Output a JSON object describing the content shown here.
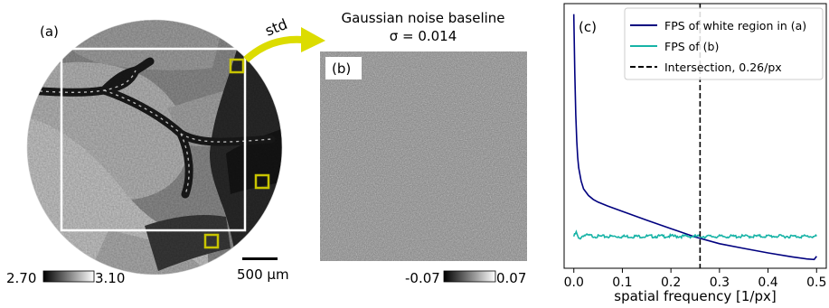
{
  "panel_a": {
    "label": "(a)",
    "arrow_label": "std",
    "colorbar_min": "2.70",
    "colorbar_max": "3.10",
    "scalebar_label": "500 µm",
    "box_color": "#c8c400",
    "roi_color": "#ffffff"
  },
  "panel_b": {
    "label": "(b)",
    "title_line1": "Gaussian noise baseline",
    "title_line2": "σ = 0.014",
    "colorbar_min": "-0.07",
    "colorbar_max": "0.07"
  },
  "chart_data": {
    "type": "line",
    "panel_label": "(c)",
    "xlabel": "spatial frequency [1/px]",
    "ylabel": "",
    "xlim": [
      -0.02,
      0.52
    ],
    "ylim": [
      0,
      1
    ],
    "xticks": [
      0.0,
      0.1,
      0.2,
      0.3,
      0.4,
      0.5
    ],
    "xtick_labels": [
      "0.0",
      "0.1",
      "0.2",
      "0.3",
      "0.4",
      "0.5"
    ],
    "yticks_shown": false,
    "legend_position": "top-right",
    "series": [
      {
        "name": "FPS of white region in (a)",
        "color": "#00007f",
        "x": [
          0.0,
          0.002,
          0.004,
          0.006,
          0.008,
          0.01,
          0.015,
          0.02,
          0.03,
          0.04,
          0.05,
          0.07,
          0.1,
          0.15,
          0.2,
          0.25,
          0.3,
          0.35,
          0.4,
          0.45,
          0.48,
          0.495,
          0.5
        ],
        "y": [
          0.96,
          0.74,
          0.58,
          0.48,
          0.42,
          0.38,
          0.33,
          0.3,
          0.275,
          0.26,
          0.25,
          0.235,
          0.215,
          0.182,
          0.15,
          0.118,
          0.093,
          0.075,
          0.058,
          0.043,
          0.035,
          0.033,
          0.045
        ]
      },
      {
        "name": "FPS of (b)",
        "color": "#17b3a6",
        "x": [
          0.0,
          0.005,
          0.01,
          0.02,
          0.05,
          0.1,
          0.2,
          0.3,
          0.4,
          0.5
        ],
        "y": [
          0.12,
          0.135,
          0.11,
          0.125,
          0.12,
          0.12,
          0.121,
          0.12,
          0.121,
          0.12
        ]
      }
    ],
    "vline": {
      "name": "Intersection, 0.26/px",
      "x": 0.26,
      "color": "#000000",
      "style": "dashed"
    }
  }
}
